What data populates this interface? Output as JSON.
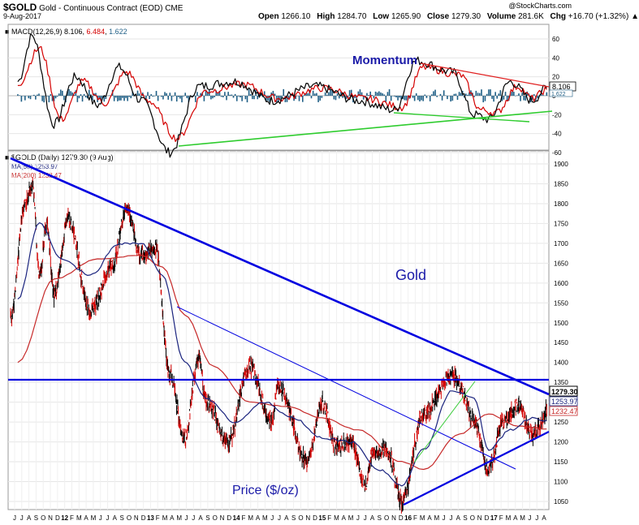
{
  "header": {
    "symbol": "$GOLD",
    "name": "Gold - Continuous Contract (EOD)",
    "exchange": "CME",
    "date": "9-Aug-2017",
    "open_label": "Open",
    "open": "1266.10",
    "high_label": "High",
    "high": "1284.70",
    "low_label": "Low",
    "low": "1265.90",
    "close_label": "Close",
    "close": "1279.30",
    "volume_label": "Volume",
    "volume": "281.6K",
    "chg_label": "Chg",
    "chg": "+16.70 (+1.32%)",
    "watermark": "@StockCharts.com"
  },
  "macd": {
    "label": "MACD(12,26,9)",
    "v1": "8.106",
    "v2": "6.484",
    "v3": "1.622",
    "annotation": "Momentum",
    "last_tag": "8.106",
    "sub_tag": "1.622"
  },
  "price": {
    "legend_main": "$GOLD (Daily) 1279.30 (9 Aug)",
    "legend_ma50": "MA(50) 1253.97",
    "legend_ma200": "MA(200) 1232.47",
    "annotation_gold": "Gold",
    "annotation_price": "Price ($/oz)",
    "tag_close": "1279.30",
    "tag_ma50": "1253.97",
    "tag_ma200": "1232.47"
  },
  "colors": {
    "price_up": "#000000",
    "price_down": "#d40000",
    "ma50": "#1a237e",
    "ma200": "#c62828",
    "trendline": "#0000e0",
    "support_green": "#3ccc3c",
    "macd_line": "#000000",
    "signal_line": "#d40000",
    "histogram": "#1f5f86",
    "annotation_text": "#1a1aa8"
  },
  "chart_data": [
    {
      "type": "line",
      "title": "MACD(12,26,9)",
      "ylim": [
        -65,
        75
      ],
      "yticks": [
        "60",
        "40",
        "20",
        "0",
        "-20",
        "-40",
        "-60"
      ],
      "x_range": [
        "2011-07",
        "2017-08"
      ],
      "series": [
        {
          "name": "MACD",
          "x": [
            "2011-07",
            "2011-09",
            "2011-12",
            "2012-03",
            "2012-06",
            "2012-09",
            "2012-12",
            "2013-04",
            "2013-08",
            "2014-01",
            "2014-06",
            "2014-12",
            "2015-06",
            "2015-11",
            "2016-02",
            "2016-07",
            "2016-10",
            "2016-12",
            "2017-03",
            "2017-06",
            "2017-08"
          ],
          "values": [
            15,
            63,
            -30,
            20,
            -10,
            30,
            -5,
            -60,
            10,
            15,
            -5,
            10,
            -5,
            -15,
            37,
            25,
            -20,
            -25,
            15,
            -5,
            8.106
          ]
        },
        {
          "name": "Signal",
          "x": [
            "2011-07",
            "2011-10",
            "2012-01",
            "2012-04",
            "2012-07",
            "2012-10",
            "2013-01",
            "2013-05",
            "2013-09",
            "2014-02",
            "2014-07",
            "2015-01",
            "2015-07",
            "2015-12",
            "2016-03",
            "2016-08",
            "2016-11",
            "2017-01",
            "2017-04",
            "2017-06",
            "2017-08"
          ],
          "values": [
            12,
            50,
            -25,
            15,
            -8,
            25,
            -5,
            -45,
            5,
            12,
            -3,
            8,
            -3,
            -12,
            30,
            22,
            -15,
            -18,
            10,
            -3,
            6.484
          ]
        },
        {
          "name": "Histogram",
          "value_last": 1.622
        }
      ]
    },
    {
      "type": "line",
      "title": "$GOLD (Daily) 1279.30 (9 Aug)",
      "ylim": [
        1030,
        1915
      ],
      "yticks": [
        "1900",
        "1850",
        "1800",
        "1750",
        "1700",
        "1650",
        "1600",
        "1550",
        "1500",
        "1450",
        "1400",
        "1350",
        "1300",
        "1250",
        "1200",
        "1150",
        "1100",
        "1050"
      ],
      "xticks": [
        "J",
        "J",
        "A",
        "S",
        "O",
        "N",
        "D",
        "12",
        "F",
        "M",
        "A",
        "M",
        "J",
        "J",
        "A",
        "S",
        "O",
        "N",
        "D",
        "13",
        "F",
        "M",
        "A",
        "M",
        "J",
        "J",
        "A",
        "S",
        "O",
        "N",
        "D",
        "14",
        "F",
        "M",
        "A",
        "M",
        "J",
        "J",
        "A",
        "S",
        "O",
        "N",
        "D",
        "15",
        "F",
        "M",
        "A",
        "M",
        "J",
        "J",
        "A",
        "S",
        "O",
        "N",
        "D",
        "16",
        "F",
        "M",
        "A",
        "M",
        "J",
        "J",
        "A",
        "S",
        "O",
        "N",
        "D",
        "17",
        "F",
        "M",
        "A",
        "M",
        "J",
        "J",
        "A"
      ],
      "series": [
        {
          "name": "$GOLD",
          "x": [
            "2011-06",
            "2011-08",
            "2011-09",
            "2011-10",
            "2011-11",
            "2011-12",
            "2012-02",
            "2012-05",
            "2012-08",
            "2012-10",
            "2012-12",
            "2013-02",
            "2013-04",
            "2013-06",
            "2013-08",
            "2013-09",
            "2013-12",
            "2014-03",
            "2014-06",
            "2014-07",
            "2014-11",
            "2015-01",
            "2015-03",
            "2015-05",
            "2015-07",
            "2015-08",
            "2015-10",
            "2015-12",
            "2016-03",
            "2016-07",
            "2016-08",
            "2016-10",
            "2016-12",
            "2017-02",
            "2017-04",
            "2017-06",
            "2017-07",
            "2017-08"
          ],
          "values": [
            1510,
            1800,
            1850,
            1620,
            1750,
            1570,
            1760,
            1530,
            1640,
            1790,
            1670,
            1690,
            1370,
            1210,
            1410,
            1300,
            1200,
            1390,
            1250,
            1340,
            1150,
            1300,
            1190,
            1200,
            1090,
            1170,
            1180,
            1050,
            1270,
            1370,
            1340,
            1250,
            1130,
            1250,
            1290,
            1220,
            1235,
            1279.3
          ]
        },
        {
          "name": "MA(50)",
          "x": [
            "2011-07",
            "2011-10",
            "2012-01",
            "2012-05",
            "2012-09",
            "2012-12",
            "2013-03",
            "2013-06",
            "2013-09",
            "2014-01",
            "2014-05",
            "2014-09",
            "2015-01",
            "2015-05",
            "2015-09",
            "2015-12",
            "2016-03",
            "2016-07",
            "2016-10",
            "2016-12",
            "2017-03",
            "2017-06",
            "2017-08"
          ],
          "values": [
            1560,
            1750,
            1660,
            1620,
            1700,
            1700,
            1620,
            1400,
            1310,
            1250,
            1300,
            1260,
            1210,
            1200,
            1130,
            1090,
            1180,
            1330,
            1310,
            1180,
            1230,
            1260,
            1253.97
          ]
        },
        {
          "name": "MA(200)",
          "x": [
            "2011-07",
            "2011-12",
            "2012-06",
            "2012-12",
            "2013-03",
            "2013-06",
            "2013-10",
            "2014-03",
            "2014-08",
            "2015-01",
            "2015-06",
            "2015-12",
            "2016-03",
            "2016-08",
            "2016-12",
            "2017-04",
            "2017-08"
          ],
          "values": [
            1400,
            1610,
            1660,
            1670,
            1640,
            1520,
            1390,
            1300,
            1290,
            1260,
            1230,
            1150,
            1130,
            1220,
            1270,
            1240,
            1232.47
          ]
        }
      ]
    }
  ]
}
